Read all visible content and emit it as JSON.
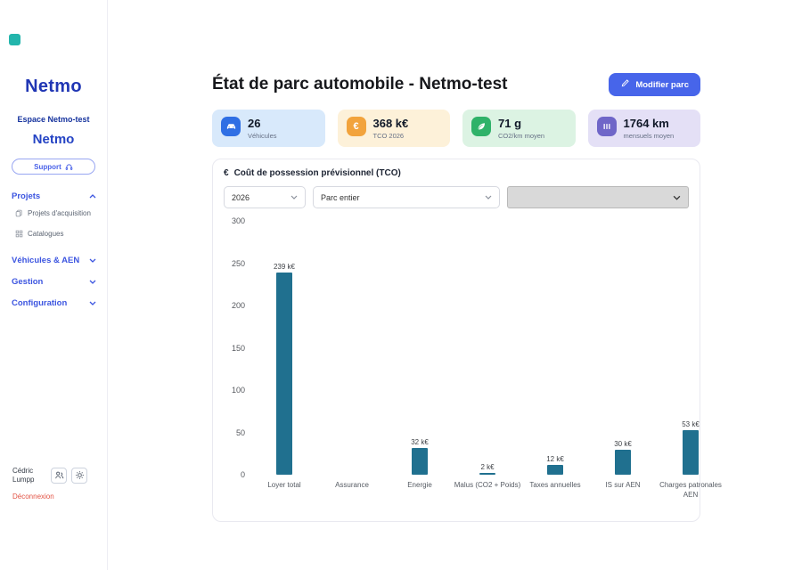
{
  "app": {
    "accent_color": "#4765ea",
    "logo_mark_color": "#23b5ac"
  },
  "sidebar": {
    "brand": "Netmo",
    "workspace": "Espace Netmo-test",
    "org": "Netmo",
    "support_label": "Support",
    "nav": {
      "projets": "Projets",
      "projets_children": [
        "Projets d'acquisition",
        "Catalogues"
      ],
      "vehicules": "Véhicules & AEN",
      "gestion": "Gestion",
      "configuration": "Configuration"
    },
    "user_name": "Cédric Lumpp",
    "logout_label": "Déconnexion"
  },
  "header": {
    "title": "État de parc automobile - Netmo-test",
    "modify_button": "Modifier parc"
  },
  "stats": [
    {
      "value": "26",
      "label": "Véhicules",
      "icon": "car-icon",
      "icon_bg": "#2f6fe4",
      "card_bg": "#d8e9fb"
    },
    {
      "value": "368 k€",
      "label": "TCO 2026",
      "icon": "euro-icon",
      "icon_bg": "#f2a33c",
      "card_bg": "#fdf1d9"
    },
    {
      "value": "71 g",
      "label": "CO2/km moyen",
      "icon": "leaf-icon",
      "icon_bg": "#2fb269",
      "card_bg": "#dcf3e3"
    },
    {
      "value": "1764 km",
      "label": "mensuels moyen",
      "icon": "distance-icon",
      "icon_bg": "#6f66c8",
      "card_bg": "#e4e0f6"
    }
  ],
  "panel": {
    "title": "Coût de possession prévisionnel (TCO)",
    "filters": [
      {
        "value": "2026"
      },
      {
        "value": "Parc entier"
      },
      {
        "value": ""
      }
    ]
  },
  "chart_data": {
    "type": "bar",
    "title": "Coût de possession prévisionnel (TCO)",
    "categories": [
      "Loyer total",
      "Assurance",
      "Energie",
      "Malus (CO2 + Poids)",
      "Taxes annuelles",
      "IS sur AEN",
      "Charges patronales AEN"
    ],
    "values": [
      239,
      0,
      32,
      2,
      12,
      30,
      53
    ],
    "value_labels": [
      "239 k€",
      "",
      "32 k€",
      "2 k€",
      "12 k€",
      "30 k€",
      "53 k€"
    ],
    "unit": "k€",
    "xlabel": "",
    "ylabel": "",
    "ylim": [
      0,
      300
    ],
    "yticks": [
      0,
      50,
      100,
      150,
      200,
      250,
      300
    ],
    "grid": false,
    "legend": false,
    "bar_color": "#20708f"
  }
}
